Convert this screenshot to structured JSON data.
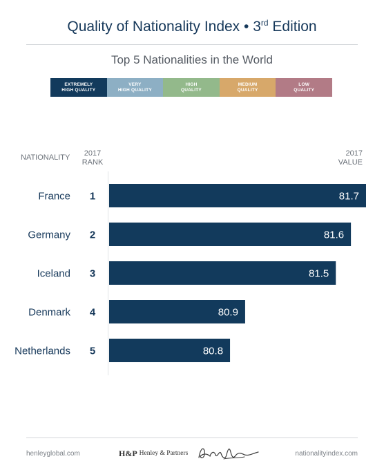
{
  "header": {
    "title_main": "Quality of Nationality Index • 3",
    "title_sup": "rd",
    "title_end": " Edition",
    "subtitle": "Top 5 Nationalities in the World"
  },
  "legend": [
    {
      "label": "EXTREMELY\nHIGH QUALITY",
      "color": "#123a5c"
    },
    {
      "label": "VERY\nHIGH QUALITY",
      "color": "#8dafc4"
    },
    {
      "label": "HIGH\nQUALITY",
      "color": "#93b98b"
    },
    {
      "label": "MEDIUM\nQUALITY",
      "color": "#d7a86a"
    },
    {
      "label": "LOW\nQUALITY",
      "color": "#b27b86"
    }
  ],
  "columns": {
    "nationality": "NATIONALITY",
    "rank": "2017\nRANK",
    "value": "2017\nVALUE"
  },
  "chart_data": {
    "type": "bar",
    "orientation": "horizontal",
    "categories": [
      "France",
      "Germany",
      "Iceland",
      "Denmark",
      "Netherlands"
    ],
    "ranks": [
      "1",
      "2",
      "3",
      "4",
      "5"
    ],
    "values": [
      81.7,
      81.6,
      81.5,
      80.9,
      80.8
    ],
    "value_labels": [
      "81.7",
      "81.6",
      "81.5",
      "80.9",
      "80.8"
    ],
    "xlim": [
      80.0,
      81.7
    ],
    "bar_color": "#123a5c",
    "label_color": "#ffffff"
  },
  "footer": {
    "left": "henleyglobal.com",
    "logo_mark": "H&P",
    "logo_name": "Henley & Partners",
    "right": "nationalityindex.com"
  }
}
